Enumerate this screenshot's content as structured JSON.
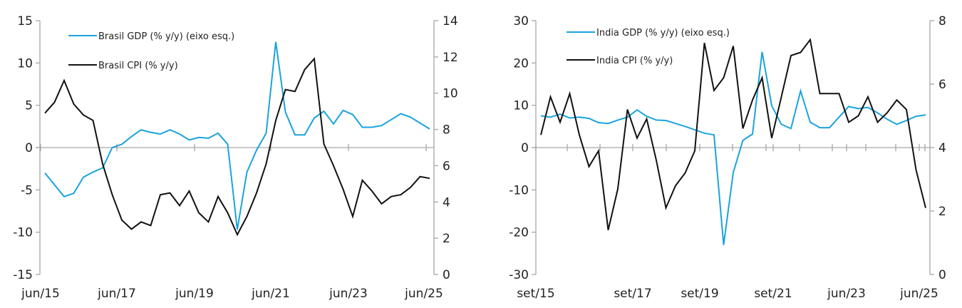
{
  "colors": {
    "gdp": "#1aa3de",
    "cpi": "#111111",
    "axis": "#a6a6a6"
  },
  "chart_data": [
    {
      "type": "line",
      "title": "",
      "xlabel": "",
      "x_tick_labels": [
        "jun/15",
        "jun/17",
        "jun/19",
        "jun/21",
        "jun/23",
        "jun/25"
      ],
      "y_left": {
        "ticks": [
          15,
          10,
          5,
          0,
          -5,
          -10,
          -15
        ],
        "ylim": [
          -15,
          15
        ]
      },
      "y_right": {
        "ticks": [
          14,
          12,
          10,
          8,
          6,
          4,
          2,
          0
        ],
        "ylim": [
          0,
          14
        ]
      },
      "legend_position": "top-left",
      "series": [
        {
          "name": "Brasil GDP (% y/y) (eixo esq.)",
          "axis": "left",
          "color_key": "gdp",
          "values": [
            -3.0,
            -4.4,
            -5.8,
            -5.4,
            -3.5,
            -2.9,
            -2.4,
            0.0,
            0.4,
            1.3,
            2.1,
            1.8,
            1.6,
            2.1,
            1.6,
            0.9,
            1.2,
            1.1,
            1.7,
            0.4,
            -9.7,
            -2.9,
            -0.3,
            1.7,
            12.5,
            4.2,
            1.5,
            1.5,
            3.5,
            4.3,
            2.8,
            4.4,
            3.9,
            2.4,
            2.4,
            2.6,
            3.3,
            4.0,
            3.6,
            2.9,
            2.2
          ]
        },
        {
          "name": "Brasil CPI (% y/y)",
          "axis": "right",
          "color_key": "cpi",
          "values": [
            8.9,
            9.5,
            10.7,
            9.4,
            8.8,
            8.5,
            6.1,
            4.4,
            3.0,
            2.5,
            2.9,
            2.7,
            4.4,
            4.5,
            3.8,
            4.6,
            3.4,
            2.9,
            4.3,
            3.4,
            2.2,
            3.2,
            4.5,
            6.1,
            8.5,
            10.2,
            10.1,
            11.3,
            11.9,
            7.2,
            6.0,
            4.7,
            3.2,
            5.2,
            4.6,
            3.9,
            4.3,
            4.4,
            4.8,
            5.4,
            5.3
          ]
        }
      ]
    },
    {
      "type": "line",
      "title": "",
      "xlabel": "",
      "x_tick_labels": [
        "set/15",
        "set/17",
        "set/19",
        "set/21",
        "jun/23",
        "jun/25"
      ],
      "y_left": {
        "ticks": [
          30,
          20,
          10,
          0,
          -10,
          -20,
          -30
        ],
        "ylim": [
          -30,
          30
        ]
      },
      "y_right": {
        "ticks": [
          8,
          6,
          4,
          2,
          0
        ],
        "ylim": [
          0,
          8
        ]
      },
      "legend_position": "top-left",
      "series": [
        {
          "name": "India GDP (% y/y) (eixo esq.)",
          "axis": "left",
          "color_key": "gdp",
          "values": [
            7.5,
            7.2,
            7.9,
            7.0,
            7.2,
            6.9,
            5.9,
            5.7,
            6.5,
            7.2,
            8.9,
            7.4,
            6.5,
            6.4,
            5.7,
            5.0,
            4.2,
            3.4,
            3.0,
            -23.0,
            -5.9,
            1.7,
            3.2,
            22.6,
            9.9,
            5.5,
            4.5,
            13.4,
            6.0,
            4.7,
            4.7,
            7.2,
            9.7,
            9.2,
            9.5,
            8.2,
            6.7,
            5.5,
            6.4,
            7.4,
            7.7
          ]
        },
        {
          "name": "India CPI (% y/y)",
          "axis": "right",
          "color_key": "cpi",
          "values": [
            4.4,
            5.6,
            4.8,
            5.7,
            4.4,
            3.4,
            3.9,
            1.4,
            2.7,
            5.2,
            4.3,
            4.9,
            3.6,
            2.1,
            2.8,
            3.2,
            3.9,
            7.3,
            5.8,
            6.2,
            7.2,
            4.6,
            5.5,
            6.2,
            4.3,
            5.6,
            6.9,
            7.0,
            7.4,
            5.7,
            5.7,
            5.7,
            4.8,
            5.0,
            5.6,
            4.8,
            5.1,
            5.5,
            5.2,
            3.3,
            2.1
          ]
        }
      ]
    }
  ]
}
